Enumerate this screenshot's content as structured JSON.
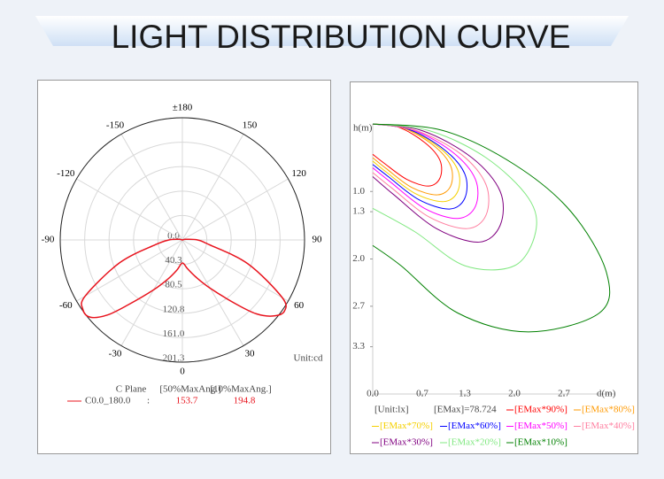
{
  "title": "LIGHT DISTRIBUTION CURVE",
  "chart_data": [
    {
      "type": "polar",
      "unit": "Unit:cd",
      "angle_ticks": [
        {
          "value": 180,
          "label": "±180"
        },
        -150,
        150,
        -120,
        120,
        -90,
        90,
        -60,
        60,
        -30,
        30,
        0
      ],
      "rlim": [
        0,
        201.3
      ],
      "rticks": [
        {
          "value": 0,
          "label": "0.0"
        },
        40.3,
        80.5,
        120.8,
        {
          "value": 161,
          "label": "161.0"
        },
        201.3
      ],
      "table_headers": [
        "C Plane",
        "[50%MaxAng.]",
        "[10%MaxAng.]"
      ],
      "series": [
        {
          "name": "C0.0_180.0",
          "color": "#e8141e",
          "separator": ":",
          "half_max_angle": 153.7,
          "tenth_max_angle": 194.8,
          "angles": [
            -180,
            -150,
            -120,
            -100,
            -90,
            -80,
            -70,
            -60,
            -55,
            -50,
            -45,
            -40,
            -30,
            -20,
            -10,
            0,
            10,
            20,
            30,
            40,
            45,
            50,
            55,
            60,
            70,
            80,
            90,
            100,
            120,
            150,
            180
          ],
          "values": [
            0,
            0,
            0,
            6,
            22,
            45,
            110,
            185,
            200,
            198,
            175,
            140,
            95,
            68,
            50,
            38,
            48,
            65,
            92,
            138,
            172,
            195,
            205,
            190,
            115,
            45,
            25,
            6,
            0,
            0,
            0
          ]
        }
      ]
    },
    {
      "type": "contour",
      "x_label": "d(m)",
      "y_label": "h(m)",
      "unit_label": "[Unit:lx]",
      "emax_label": "[EMax]=78.724",
      "xlim": [
        0,
        3.4
      ],
      "ylim": [
        0,
        4
      ],
      "y_reversed": true,
      "xticks": [
        {
          "value": 0,
          "label": "0.0"
        },
        0.7,
        1.3,
        {
          "value": 2,
          "label": "2.0"
        },
        2.7
      ],
      "yticks": [
        {
          "value": 1,
          "label": "1.0"
        },
        1.3,
        {
          "value": 2,
          "label": "2.0"
        },
        2.7,
        3.3
      ],
      "series": [
        {
          "name": "[EMax*90%]",
          "color": "#ff0000",
          "x": [
            0,
            0.37,
            0.74,
            0.95,
            0.95,
            0.79,
            0.48,
            0.16,
            0
          ],
          "values": [
            0,
            0.05,
            0.28,
            0.54,
            0.8,
            0.92,
            0.82,
            0.58,
            0.45
          ]
        },
        {
          "name": "[EMax*80%]",
          "color": "#ff9900",
          "x": [
            0,
            0.43,
            0.86,
            1.1,
            1.1,
            0.91,
            0.55,
            0.19,
            0
          ],
          "values": [
            0,
            0.06,
            0.32,
            0.62,
            0.92,
            1.05,
            0.94,
            0.66,
            0.5
          ]
        },
        {
          "name": "[EMax*70%]",
          "color": "#f5d000",
          "x": [
            0,
            0.47,
            0.94,
            1.2,
            1.2,
            1.0,
            0.6,
            0.2,
            0
          ],
          "values": [
            0,
            0.07,
            0.35,
            0.68,
            1.0,
            1.15,
            1.03,
            0.72,
            0.55
          ]
        },
        {
          "name": "[EMax*60%]",
          "color": "#0000ff",
          "x": [
            0,
            0.51,
            1.01,
            1.3,
            1.3,
            1.08,
            0.65,
            0.22,
            0
          ],
          "values": [
            0,
            0.08,
            0.38,
            0.74,
            1.1,
            1.26,
            1.12,
            0.78,
            0.6
          ]
        },
        {
          "name": "[EMax*50%]",
          "color": "#ff00ff",
          "x": [
            0,
            0.57,
            1.13,
            1.45,
            1.45,
            1.2,
            0.73,
            0.25,
            0
          ],
          "values": [
            0,
            0.09,
            0.42,
            0.82,
            1.22,
            1.4,
            1.25,
            0.86,
            0.65
          ]
        },
        {
          "name": "[EMax*40%]",
          "color": "#ff7fa0",
          "x": [
            0,
            0.62,
            1.25,
            1.6,
            1.6,
            1.33,
            0.8,
            0.27,
            0
          ],
          "values": [
            0,
            0.1,
            0.45,
            0.9,
            1.35,
            1.55,
            1.38,
            0.95,
            0.72
          ]
        },
        {
          "name": "[EMax*30%]",
          "color": "#800080",
          "x": [
            0,
            0.7,
            1.4,
            1.8,
            1.8,
            1.5,
            0.9,
            0.3,
            0
          ],
          "values": [
            0,
            0.1,
            0.5,
            1.0,
            1.5,
            1.75,
            1.55,
            1.05,
            0.78
          ]
        },
        {
          "name": "[EMax*20%]",
          "color": "#80e880",
          "x": [
            0,
            0.8,
            1.6,
            2.2,
            2.3,
            2.0,
            1.3,
            0.6,
            0
          ],
          "values": [
            0,
            0.1,
            0.5,
            1.1,
            1.6,
            2.1,
            2.1,
            1.6,
            1.25
          ]
        },
        {
          "name": "[EMax*10%]",
          "color": "#008000",
          "x": [
            0,
            1.0,
            2.0,
            2.8,
            3.3,
            3.2,
            2.2,
            1.2,
            0.4,
            0
          ],
          "values": [
            0,
            0.1,
            0.6,
            1.3,
            2.2,
            2.8,
            3.08,
            2.8,
            2.1,
            1.8
          ]
        }
      ]
    }
  ]
}
